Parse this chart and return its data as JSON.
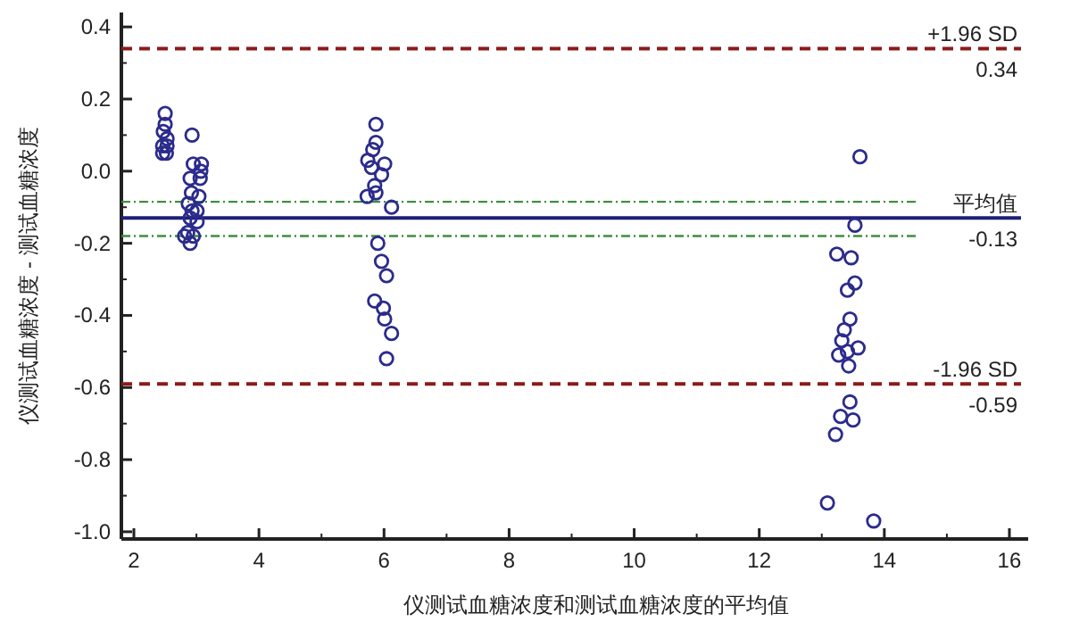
{
  "chart_data": {
    "type": "scatter",
    "xlabel": "仪测试血糖浓度和测试血糖浓度的平均值",
    "ylabel": "仪测试血糖浓度 - 测试血糖浓度",
    "xlim": [
      1.8,
      16.3
    ],
    "ylim": [
      -1.02,
      0.44
    ],
    "xticks": [
      2,
      4,
      6,
      8,
      10,
      12,
      14,
      16
    ],
    "yticks": [
      {
        "value": -1.0,
        "label": "-1.0"
      },
      -0.8,
      -0.6,
      -0.4,
      -0.2,
      {
        "value": 0,
        "label": "0.0"
      },
      0.2,
      0.4
    ],
    "marker": "circle",
    "grid": false,
    "series": [
      {
        "color": "#2b2b8c",
        "x": [
          2.5,
          2.5,
          2.47,
          2.53,
          2.46,
          2.53,
          2.46,
          2.52,
          2.93,
          2.95,
          3.08,
          3.07,
          2.9,
          3.06,
          2.92,
          3.04,
          2.87,
          2.93,
          3.01,
          2.9,
          3.01,
          2.86,
          2.95,
          2.81,
          2.9,
          5.87,
          5.87,
          5.82,
          5.74,
          6.01,
          5.8,
          5.96,
          5.85,
          5.73,
          5.87,
          6.12,
          5.9,
          5.96,
          6.04,
          5.85,
          5.99,
          6.01,
          6.12,
          6.04,
          13.61,
          13.53,
          13.24,
          13.47,
          13.53,
          13.41,
          13.45,
          13.36,
          13.32,
          13.58,
          13.41,
          13.27,
          13.43,
          13.45,
          13.3,
          13.5,
          13.22,
          13.09,
          13.83
        ],
        "values": [
          0.16,
          0.13,
          0.11,
          0.09,
          0.07,
          0.07,
          0.05,
          0.05,
          0.1,
          0.02,
          0.02,
          0.0,
          -0.02,
          -0.02,
          -0.06,
          -0.07,
          -0.09,
          -0.11,
          -0.11,
          -0.13,
          -0.14,
          -0.17,
          -0.18,
          -0.18,
          -0.2,
          0.13,
          0.08,
          0.06,
          0.03,
          0.02,
          0.01,
          -0.01,
          -0.04,
          -0.07,
          -0.06,
          -0.1,
          -0.2,
          -0.25,
          -0.29,
          -0.36,
          -0.38,
          -0.41,
          -0.45,
          -0.52,
          0.04,
          -0.15,
          -0.23,
          -0.24,
          -0.31,
          -0.33,
          -0.41,
          -0.44,
          -0.47,
          -0.49,
          -0.5,
          -0.51,
          -0.54,
          -0.64,
          -0.68,
          -0.69,
          -0.73,
          -0.92,
          -0.97
        ]
      }
    ],
    "ref_lines": [
      {
        "axis": "y",
        "value": 0.34,
        "label": "+1.96 SD",
        "color": "#8b1a1a",
        "line_style": "dashed"
      },
      {
        "axis": "y",
        "value": -0.13,
        "label": "平均值",
        "color": "#1f1f7a",
        "line_style": "solid"
      },
      {
        "axis": "y",
        "value": -0.59,
        "label": "-1.96 SD",
        "color": "#8b1a1a",
        "line_style": "dashed"
      },
      {
        "axis": "y",
        "value": -0.085,
        "color": "#3f8f3f",
        "line_style": "dotted"
      },
      {
        "axis": "y",
        "value": -0.18,
        "color": "#3f8f3f",
        "line_style": "dotted"
      }
    ],
    "annotations": [
      {
        "text": "0.34",
        "y": 0.34
      },
      {
        "text": "-0.13",
        "y": -0.13
      },
      {
        "text": "-0.59",
        "y": -0.59
      }
    ]
  }
}
